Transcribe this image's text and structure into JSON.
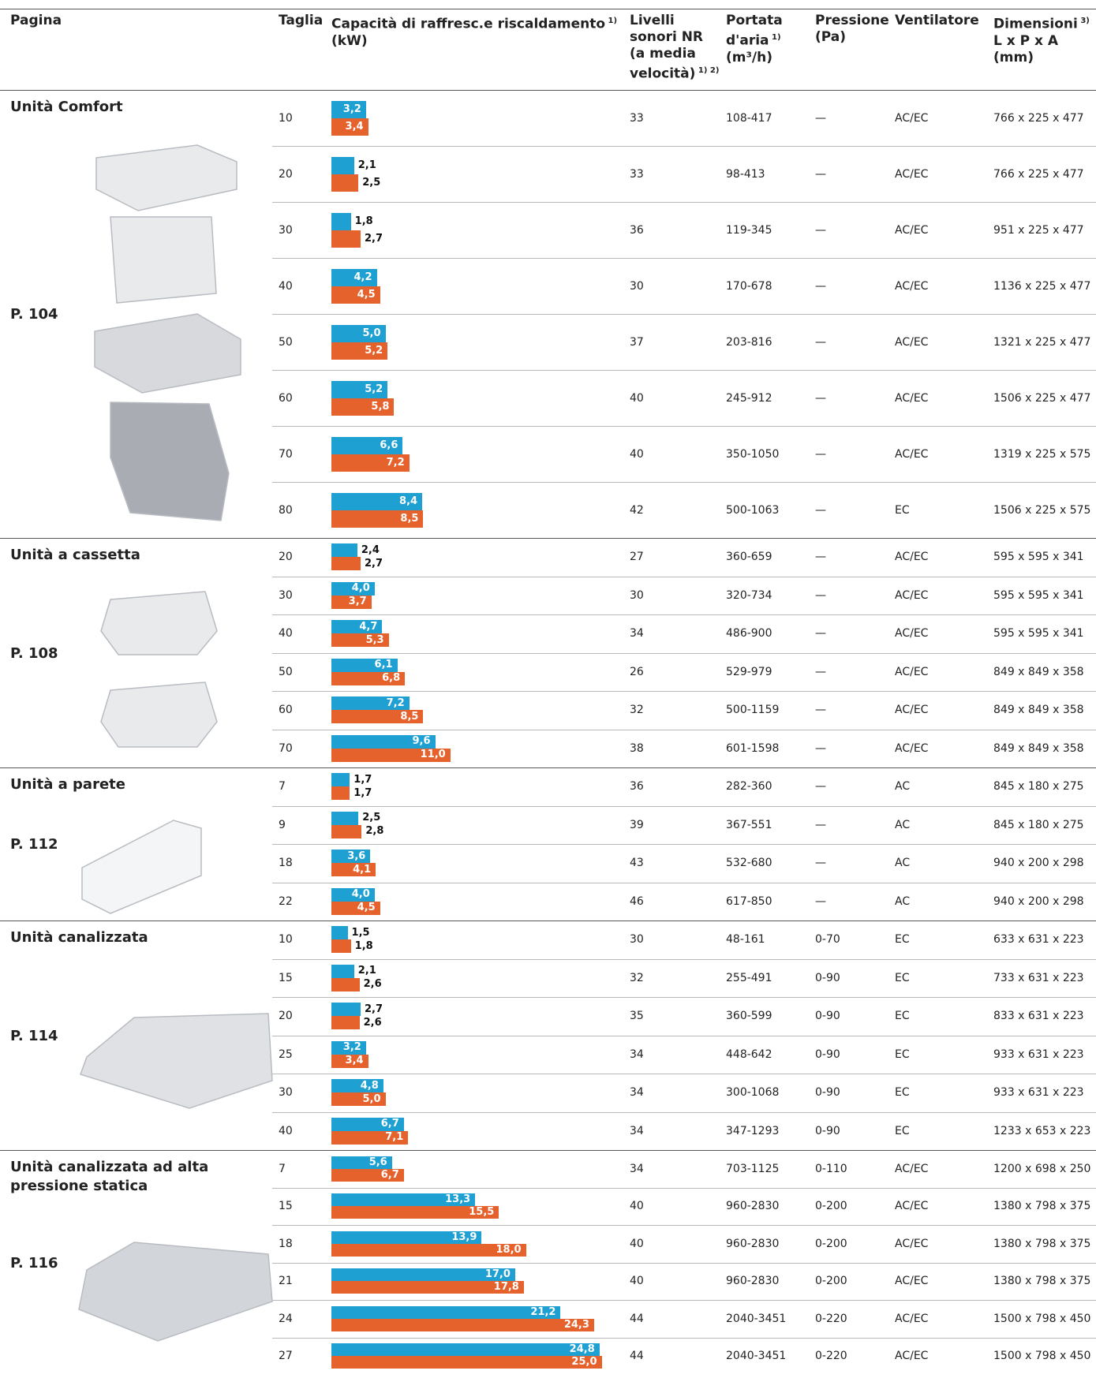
{
  "colors": {
    "cooling": "#1fa0d3",
    "heating": "#e6622d"
  },
  "header": [
    {
      "lines": [
        {
          "t": "Pagina"
        }
      ]
    },
    {
      "lines": [
        {
          "t": "Taglia"
        }
      ]
    },
    {
      "lines": [
        {
          "t": "Capacità di raffresc.e riscaldamento",
          "sup": "1)"
        },
        {
          "t": "(kW)"
        }
      ]
    },
    {
      "lines": [
        {
          "t": "Livelli"
        },
        {
          "t": "sonori NR"
        },
        {
          "t": "(a media"
        },
        {
          "t": "velocità)",
          "sup": "1) 2)"
        }
      ]
    },
    {
      "lines": [
        {
          "t": "Portata"
        },
        {
          "t": "d'aria",
          "sup": "1)"
        },
        {
          "t": "(m³/h)"
        }
      ]
    },
    {
      "lines": [
        {
          "t": "Pressione"
        },
        {
          "t": "(Pa)"
        }
      ]
    },
    {
      "lines": [
        {
          "t": "Ventilatore"
        }
      ]
    },
    {
      "lines": [
        {
          "t": "Dimensioni",
          "sup": "3)"
        },
        {
          "t": "L x P x A"
        },
        {
          "t": "(mm)"
        }
      ]
    }
  ],
  "groups": [
    {
      "title": "Unità Comfort",
      "page": "P. 104",
      "rows": [
        [
          "10",
          3.2,
          "3,2",
          3.4,
          "3,4",
          "33",
          "108-417",
          "—",
          "AC/EC",
          "766 x 225 x 477"
        ],
        [
          "20",
          2.1,
          "2,1",
          2.5,
          "2,5",
          "33",
          "98-413",
          "—",
          "AC/EC",
          "766 x 225 x 477"
        ],
        [
          "30",
          1.8,
          "1,8",
          2.7,
          "2,7",
          "36",
          "119-345",
          "—",
          "AC/EC",
          "951 x 225 x 477"
        ],
        [
          "40",
          4.2,
          "4,2",
          4.5,
          "4,5",
          "30",
          "170-678",
          "—",
          "AC/EC",
          "1136 x 225 x 477"
        ],
        [
          "50",
          5.0,
          "5,0",
          5.2,
          "5,2",
          "37",
          "203-816",
          "—",
          "AC/EC",
          "1321 x 225 x 477"
        ],
        [
          "60",
          5.2,
          "5,2",
          5.8,
          "5,8",
          "40",
          "245-912",
          "—",
          "AC/EC",
          "1506 x 225 x 477"
        ],
        [
          "70",
          6.6,
          "6,6",
          7.2,
          "7,2",
          "40",
          "350-1050",
          "—",
          "AC/EC",
          "1319 x 225 x 575"
        ],
        [
          "80",
          8.4,
          "8,4",
          8.5,
          "8,5",
          "42",
          "500-1063",
          "—",
          "EC",
          "1506 x 225 x 575"
        ]
      ]
    },
    {
      "title": "Unità a cassetta",
      "page": "P. 108",
      "rows": [
        [
          "20",
          2.4,
          "2,4",
          2.7,
          "2,7",
          "27",
          "360-659",
          "—",
          "AC/EC",
          "595 x 595 x 341"
        ],
        [
          "30",
          4.0,
          "4,0",
          3.7,
          "3,7",
          "30",
          "320-734",
          "—",
          "AC/EC",
          "595 x 595 x 341"
        ],
        [
          "40",
          4.7,
          "4,7",
          5.3,
          "5,3",
          "34",
          "486-900",
          "—",
          "AC/EC",
          "595 x 595 x 341"
        ],
        [
          "50",
          6.1,
          "6,1",
          6.8,
          "6,8",
          "26",
          "529-979",
          "—",
          "AC/EC",
          "849 x 849 x 358"
        ],
        [
          "60",
          7.2,
          "7,2",
          8.5,
          "8,5",
          "32",
          "500-1159",
          "—",
          "AC/EC",
          "849 x 849 x 358"
        ],
        [
          "70",
          9.6,
          "9,6",
          11.0,
          "11,0",
          "38",
          "601-1598",
          "—",
          "AC/EC",
          "849 x 849 x 358"
        ]
      ]
    },
    {
      "title": "Unità a parete",
      "page": "P. 112",
      "rows": [
        [
          "7",
          1.7,
          "1,7",
          1.7,
          "1,7",
          "36",
          "282-360",
          "—",
          "AC",
          "845 x 180 x 275"
        ],
        [
          "9",
          2.5,
          "2,5",
          2.8,
          "2,8",
          "39",
          "367-551",
          "—",
          "AC",
          "845 x 180 x 275"
        ],
        [
          "18",
          3.6,
          "3,6",
          4.1,
          "4,1",
          "43",
          "532-680",
          "—",
          "AC",
          "940 x 200 x 298"
        ],
        [
          "22",
          4.0,
          "4,0",
          4.5,
          "4,5",
          "46",
          "617-850",
          "—",
          "AC",
          "940 x 200 x 298"
        ]
      ]
    },
    {
      "title": "Unità canalizzata",
      "page": "P. 114",
      "rows": [
        [
          "10",
          1.5,
          "1,5",
          1.8,
          "1,8",
          "30",
          "48-161",
          "0-70",
          "EC",
          "633 x 631 x 223"
        ],
        [
          "15",
          2.1,
          "2,1",
          2.6,
          "2,6",
          "32",
          "255-491",
          "0-90",
          "EC",
          "733 x 631 x 223"
        ],
        [
          "20",
          2.7,
          "2,7",
          2.6,
          "2,6",
          "35",
          "360-599",
          "0-90",
          "EC",
          "833 x 631 x 223"
        ],
        [
          "25",
          3.2,
          "3,2",
          3.4,
          "3,4",
          "34",
          "448-642",
          "0-90",
          "EC",
          "933 x 631 x 223"
        ],
        [
          "30",
          4.8,
          "4,8",
          5.0,
          "5,0",
          "34",
          "300-1068",
          "0-90",
          "EC",
          "933 x 631 x 223"
        ],
        [
          "40",
          6.7,
          "6,7",
          7.1,
          "7,1",
          "34",
          "347-1293",
          "0-90",
          "EC",
          "1233 x 653 x 223"
        ]
      ]
    },
    {
      "title": "Unità canalizzata ad alta pressione statica",
      "page": "P. 116",
      "rows": [
        [
          "7",
          5.6,
          "5,6",
          6.7,
          "6,7",
          "34",
          "703-1125",
          "0-110",
          "AC/EC",
          "1200 x 698 x 250"
        ],
        [
          "15",
          13.3,
          "13,3",
          15.5,
          "15,5",
          "40",
          "960-2830",
          "0-200",
          "AC/EC",
          "1380 x 798 x 375"
        ],
        [
          "18",
          13.9,
          "13,9",
          18.0,
          "18,0",
          "40",
          "960-2830",
          "0-200",
          "AC/EC",
          "1380 x 798 x 375"
        ],
        [
          "21",
          17.0,
          "17,0",
          17.8,
          "17,8",
          "40",
          "960-2830",
          "0-200",
          "AC/EC",
          "1380 x 798 x 375"
        ],
        [
          "24",
          21.2,
          "21,2",
          24.3,
          "24,3",
          "44",
          "2040-3451",
          "0-220",
          "AC/EC",
          "1500 x 798 x 450"
        ],
        [
          "27",
          24.8,
          "24,8",
          25.0,
          "25,0",
          "44",
          "2040-3451",
          "0-220",
          "AC/EC",
          "1500 x 798 x 450"
        ]
      ]
    }
  ]
}
